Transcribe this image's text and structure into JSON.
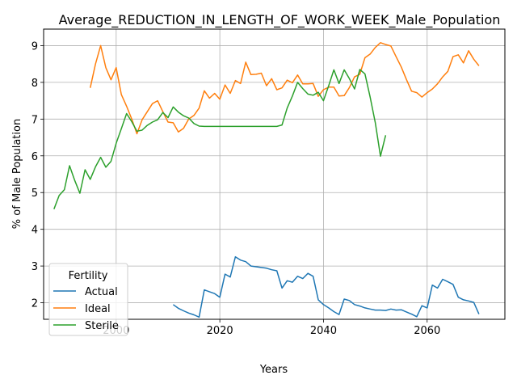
{
  "chart_data": {
    "type": "line",
    "title": "Average_REDUCTION_IN_LENGTH_OF_WORK_WEEK_Male_Population",
    "xlabel": "Years",
    "ylabel": "% of Male Population",
    "xlim": [
      1986,
      2075
    ],
    "ylim": [
      1.55,
      9.45
    ],
    "xticks": [
      2000,
      2020,
      2040,
      2060
    ],
    "yticks": [
      2,
      3,
      4,
      5,
      6,
      7,
      8,
      9
    ],
    "grid": true,
    "legend": {
      "title": "Fertility",
      "position": "lower-left"
    },
    "series": [
      {
        "name": "Actual",
        "color": "#1f77b4",
        "points": [
          [
            2011,
            1.95
          ],
          [
            2012,
            1.85
          ],
          [
            2013,
            1.78
          ],
          [
            2014,
            1.72
          ],
          [
            2015,
            1.67
          ],
          [
            2016,
            1.61
          ],
          [
            2017,
            2.35
          ],
          [
            2018,
            2.3
          ],
          [
            2019,
            2.25
          ],
          [
            2020,
            2.15
          ],
          [
            2021,
            2.78
          ],
          [
            2022,
            2.7
          ],
          [
            2023,
            3.25
          ],
          [
            2024,
            3.16
          ],
          [
            2025,
            3.12
          ],
          [
            2026,
            3.0
          ],
          [
            2027,
            2.98
          ],
          [
            2028,
            2.96
          ],
          [
            2029,
            2.94
          ],
          [
            2030,
            2.9
          ],
          [
            2031,
            2.87
          ],
          [
            2032,
            2.4
          ],
          [
            2033,
            2.6
          ],
          [
            2034,
            2.56
          ],
          [
            2035,
            2.72
          ],
          [
            2036,
            2.66
          ],
          [
            2037,
            2.8
          ],
          [
            2038,
            2.72
          ],
          [
            2039,
            2.08
          ],
          [
            2040,
            1.95
          ],
          [
            2041,
            1.86
          ],
          [
            2042,
            1.76
          ],
          [
            2043,
            1.68
          ],
          [
            2044,
            2.1
          ],
          [
            2045,
            2.06
          ],
          [
            2046,
            1.95
          ],
          [
            2047,
            1.91
          ],
          [
            2048,
            1.86
          ],
          [
            2049,
            1.83
          ],
          [
            2050,
            1.8
          ],
          [
            2051,
            1.8
          ],
          [
            2052,
            1.79
          ],
          [
            2053,
            1.83
          ],
          [
            2054,
            1.8
          ],
          [
            2055,
            1.81
          ],
          [
            2056,
            1.75
          ],
          [
            2057,
            1.69
          ],
          [
            2058,
            1.62
          ],
          [
            2059,
            1.92
          ],
          [
            2060,
            1.86
          ],
          [
            2061,
            2.48
          ],
          [
            2062,
            2.4
          ],
          [
            2063,
            2.64
          ],
          [
            2064,
            2.57
          ],
          [
            2065,
            2.5
          ],
          [
            2066,
            2.15
          ],
          [
            2067,
            2.08
          ],
          [
            2068,
            2.05
          ],
          [
            2069,
            2.01
          ],
          [
            2070,
            1.69
          ]
        ]
      },
      {
        "name": "Ideal",
        "color": "#ff7f0e",
        "points": [
          [
            1995,
            7.85
          ],
          [
            1996,
            8.5
          ],
          [
            1997,
            9.0
          ],
          [
            1998,
            8.4
          ],
          [
            1999,
            8.07
          ],
          [
            2000,
            8.4
          ],
          [
            2001,
            7.67
          ],
          [
            2002,
            7.35
          ],
          [
            2003,
            7.0
          ],
          [
            2004,
            6.6
          ],
          [
            2005,
            6.98
          ],
          [
            2006,
            7.2
          ],
          [
            2007,
            7.42
          ],
          [
            2008,
            7.5
          ],
          [
            2009,
            7.2
          ],
          [
            2010,
            6.92
          ],
          [
            2011,
            6.9
          ],
          [
            2012,
            6.65
          ],
          [
            2013,
            6.75
          ],
          [
            2014,
            7.0
          ],
          [
            2015,
            7.1
          ],
          [
            2016,
            7.3
          ],
          [
            2017,
            7.77
          ],
          [
            2018,
            7.57
          ],
          [
            2019,
            7.7
          ],
          [
            2020,
            7.54
          ],
          [
            2021,
            7.93
          ],
          [
            2022,
            7.7
          ],
          [
            2023,
            8.05
          ],
          [
            2024,
            7.97
          ],
          [
            2025,
            8.55
          ],
          [
            2026,
            8.21
          ],
          [
            2027,
            8.22
          ],
          [
            2028,
            8.25
          ],
          [
            2029,
            7.91
          ],
          [
            2030,
            8.1
          ],
          [
            2031,
            7.8
          ],
          [
            2032,
            7.85
          ],
          [
            2033,
            8.06
          ],
          [
            2034,
            7.99
          ],
          [
            2035,
            8.2
          ],
          [
            2036,
            7.96
          ],
          [
            2037,
            7.96
          ],
          [
            2038,
            7.97
          ],
          [
            2039,
            7.62
          ],
          [
            2040,
            7.8
          ],
          [
            2041,
            7.87
          ],
          [
            2042,
            7.87
          ],
          [
            2043,
            7.63
          ],
          [
            2044,
            7.64
          ],
          [
            2045,
            7.86
          ],
          [
            2046,
            8.15
          ],
          [
            2047,
            8.22
          ],
          [
            2048,
            8.67
          ],
          [
            2049,
            8.77
          ],
          [
            2050,
            8.95
          ],
          [
            2051,
            9.08
          ],
          [
            2052,
            9.03
          ],
          [
            2053,
            8.99
          ],
          [
            2054,
            8.7
          ],
          [
            2055,
            8.42
          ],
          [
            2056,
            8.08
          ],
          [
            2057,
            7.76
          ],
          [
            2058,
            7.72
          ],
          [
            2059,
            7.6
          ],
          [
            2060,
            7.72
          ],
          [
            2061,
            7.82
          ],
          [
            2062,
            7.96
          ],
          [
            2063,
            8.15
          ],
          [
            2064,
            8.3
          ],
          [
            2065,
            8.7
          ],
          [
            2066,
            8.75
          ],
          [
            2067,
            8.53
          ],
          [
            2068,
            8.86
          ],
          [
            2069,
            8.63
          ],
          [
            2070,
            8.45
          ]
        ]
      },
      {
        "name": "Sterile",
        "color": "#2ca02c",
        "points": [
          [
            1988,
            4.55
          ],
          [
            1989,
            4.92
          ],
          [
            1990,
            5.08
          ],
          [
            1991,
            5.73
          ],
          [
            1992,
            5.33
          ],
          [
            1993,
            4.98
          ],
          [
            1994,
            5.62
          ],
          [
            1995,
            5.36
          ],
          [
            1996,
            5.7
          ],
          [
            1997,
            5.96
          ],
          [
            1998,
            5.69
          ],
          [
            1999,
            5.85
          ],
          [
            2000,
            6.34
          ],
          [
            2001,
            6.74
          ],
          [
            2002,
            7.15
          ],
          [
            2003,
            6.93
          ],
          [
            2004,
            6.67
          ],
          [
            2005,
            6.7
          ],
          [
            2006,
            6.83
          ],
          [
            2007,
            6.92
          ],
          [
            2008,
            6.98
          ],
          [
            2009,
            7.18
          ],
          [
            2010,
            7.04
          ],
          [
            2011,
            7.33
          ],
          [
            2012,
            7.19
          ],
          [
            2013,
            7.09
          ],
          [
            2014,
            7.03
          ],
          [
            2015,
            6.88
          ],
          [
            2016,
            6.81
          ],
          [
            2017,
            6.8
          ],
          [
            2018,
            6.8
          ],
          [
            2019,
            6.8
          ],
          [
            2020,
            6.8
          ],
          [
            2021,
            6.8
          ],
          [
            2022,
            6.8
          ],
          [
            2023,
            6.8
          ],
          [
            2024,
            6.8
          ],
          [
            2025,
            6.8
          ],
          [
            2026,
            6.8
          ],
          [
            2027,
            6.8
          ],
          [
            2028,
            6.8
          ],
          [
            2029,
            6.8
          ],
          [
            2030,
            6.8
          ],
          [
            2031,
            6.8
          ],
          [
            2032,
            6.84
          ],
          [
            2033,
            7.3
          ],
          [
            2034,
            7.63
          ],
          [
            2035,
            8.0
          ],
          [
            2036,
            7.83
          ],
          [
            2037,
            7.68
          ],
          [
            2038,
            7.65
          ],
          [
            2039,
            7.73
          ],
          [
            2040,
            7.5
          ],
          [
            2041,
            7.91
          ],
          [
            2042,
            8.34
          ],
          [
            2043,
            7.97
          ],
          [
            2044,
            8.34
          ],
          [
            2045,
            8.1
          ],
          [
            2046,
            7.82
          ],
          [
            2047,
            8.35
          ],
          [
            2048,
            8.23
          ],
          [
            2049,
            7.6
          ],
          [
            2050,
            6.9
          ],
          [
            2051,
            5.99
          ],
          [
            2052,
            6.56
          ]
        ]
      }
    ]
  }
}
